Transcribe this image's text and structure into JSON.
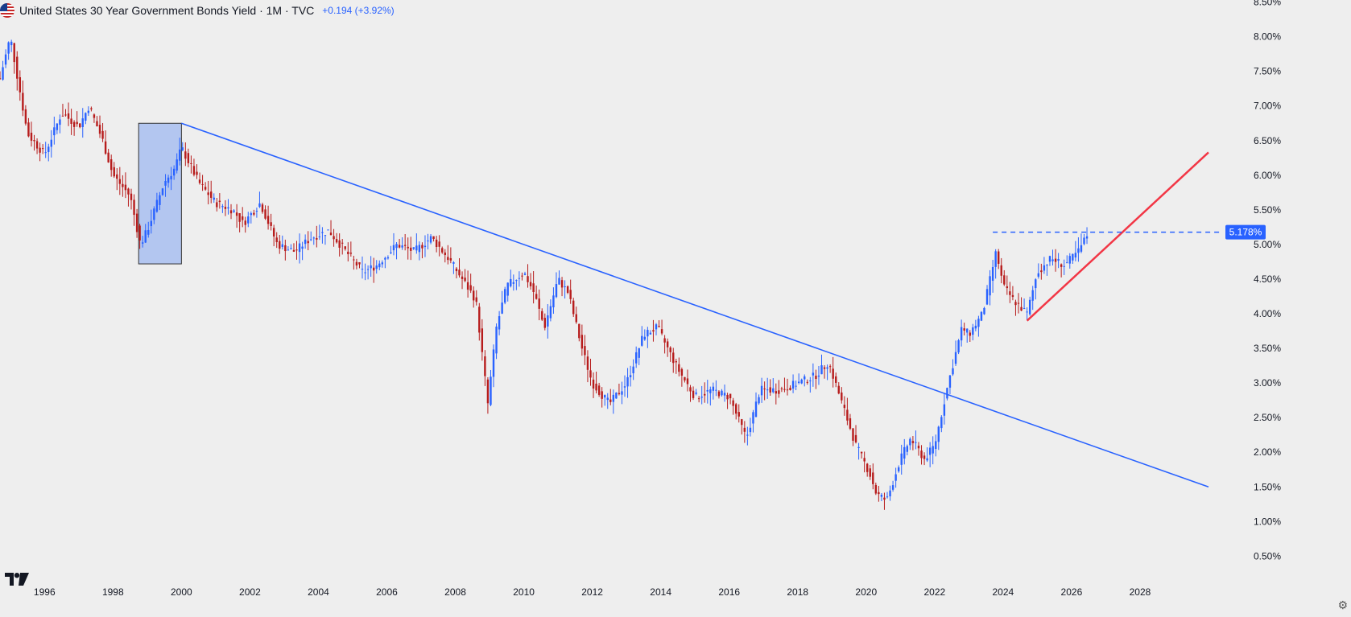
{
  "legend": {
    "title": "United States 30 Year Government Bonds Yield · 1M · TVC",
    "change": "+0.194 (+3.92%)",
    "flag_icon": "us-flag-icon"
  },
  "price_label": "5.178%",
  "colors": {
    "background": "#eeeeee",
    "up": "#2962ff",
    "down": "#b71c1c",
    "trendline": "#2962ff",
    "support": "#f23645",
    "box_fill": "#9fb8f0",
    "axis_text": "#131722"
  },
  "chart_data": {
    "type": "candlestick",
    "title": "United States 30 Year Government Bonds Yield · 1M · TVC",
    "timeframe": "1M",
    "last_value": 5.178,
    "x_axis": {
      "tick_labels": [
        "1996",
        "1998",
        "2000",
        "2002",
        "2004",
        "2006",
        "2008",
        "2010",
        "2012",
        "2014",
        "2016",
        "2018",
        "2020",
        "2022",
        "2024",
        "2026",
        "2028"
      ],
      "range": [
        1994.7,
        2030.4
      ]
    },
    "y_axis": {
      "tick_values": [
        8.5,
        8.0,
        7.5,
        7.0,
        6.5,
        6.0,
        5.5,
        5.0,
        4.5,
        4.0,
        3.5,
        3.0,
        2.5,
        2.0,
        1.5,
        1.0,
        0.5
      ],
      "tick_labels": [
        "8.50%",
        "8.00%",
        "7.50%",
        "7.00%",
        "6.50%",
        "6.00%",
        "5.50%",
        "5.00%",
        "4.50%",
        "4.00%",
        "3.50%",
        "3.00%",
        "2.50%",
        "2.00%",
        "1.50%",
        "1.00%",
        "0.50%"
      ],
      "range": [
        0.4,
        8.53
      ]
    },
    "series": [
      {
        "x": [
          1994.7,
          1995.0,
          1995.5,
          1996.0,
          1996.5,
          1997.0,
          1997.3,
          1997.7,
          1998.0,
          1998.5,
          1998.8,
          1999.0,
          1999.5,
          1999.8,
          2000.0,
          2000.5,
          2001.0,
          2001.5,
          2001.8,
          2002.3,
          2002.8,
          2003.3,
          2003.8,
          2004.3,
          2004.8,
          2005.3,
          2005.7,
          2006.3,
          2006.8,
          2007.3,
          2007.8,
          2008.2,
          2008.6,
          2008.95,
          2009.2,
          2009.5,
          2010.0,
          2010.3,
          2010.6,
          2011.0,
          2011.3,
          2011.7,
          2012.0,
          2012.5,
          2013.0,
          2013.5,
          2013.9,
          2014.5,
          2015.0,
          2015.5,
          2016.0,
          2016.5,
          2016.9,
          2017.5,
          2018.0,
          2018.5,
          2018.9,
          2019.3,
          2019.7,
          2020.1,
          2020.3,
          2020.6,
          2021.0,
          2021.3,
          2021.7,
          2022.0,
          2022.4,
          2022.8,
          2023.0,
          2023.4,
          2023.8,
          2024.0,
          2024.3,
          2024.7,
          2025.0,
          2025.4,
          2025.8,
          2026.2,
          2026.5
        ],
        "y": [
          7.4,
          8.0,
          6.6,
          6.3,
          6.9,
          6.7,
          7.0,
          6.5,
          6.0,
          5.7,
          5.0,
          5.2,
          5.9,
          6.1,
          6.4,
          5.9,
          5.6,
          5.5,
          5.3,
          5.6,
          5.0,
          4.9,
          5.1,
          5.2,
          4.9,
          4.6,
          4.7,
          5.0,
          4.9,
          5.1,
          4.8,
          4.5,
          4.2,
          2.7,
          3.8,
          4.4,
          4.6,
          4.3,
          3.8,
          4.5,
          4.3,
          3.5,
          3.0,
          2.7,
          3.0,
          3.7,
          3.8,
          3.2,
          2.8,
          2.9,
          2.8,
          2.2,
          2.9,
          2.9,
          3.0,
          3.1,
          3.3,
          2.7,
          2.1,
          1.7,
          1.4,
          1.3,
          1.9,
          2.2,
          1.9,
          2.1,
          3.0,
          3.8,
          3.7,
          4.0,
          4.9,
          4.4,
          4.2,
          4.0,
          4.6,
          4.8,
          4.7,
          4.9,
          5.18
        ]
      }
    ],
    "annotations": {
      "highlight_box": {
        "x": [
          1998.75,
          2000.0
        ],
        "y": [
          4.72,
          6.75
        ]
      },
      "downtrend_line": {
        "x": [
          2000.0,
          2030.0
        ],
        "y": [
          6.75,
          1.5
        ]
      },
      "support_line": {
        "x": [
          2024.7,
          2030.0
        ],
        "y": [
          3.9,
          6.33
        ]
      },
      "resistance_level": {
        "x": [
          2023.7,
          2030.0
        ],
        "y": 5.178
      }
    }
  }
}
